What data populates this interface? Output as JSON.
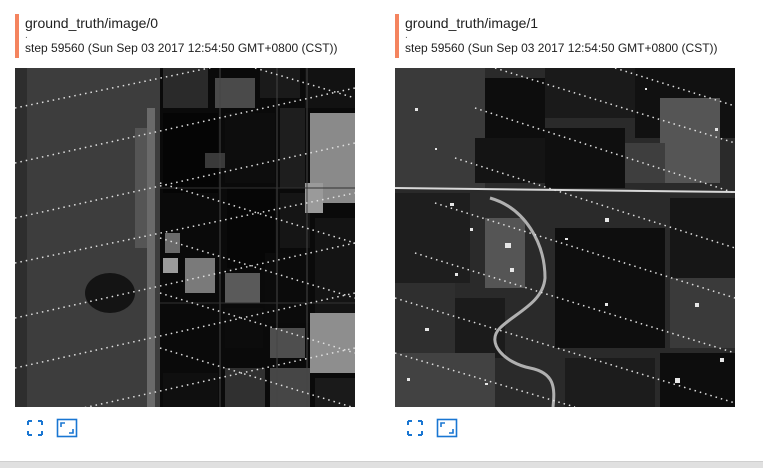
{
  "colors": {
    "accent": "#f4845f",
    "icon": "#1976d2",
    "title_text": "#212121"
  },
  "cards": [
    {
      "title": "ground_truth/image/0",
      "dot": ".",
      "subtitle": "step 59560 (Sun Sep 03 2017 12:54:50 GMT+0800 (CST))",
      "image_alt": "ground truth segmentation image 0",
      "actions": [
        {
          "icon": "fullscreen-icon",
          "label": "Toggle actual size"
        },
        {
          "icon": "fit-icon",
          "label": "Fit image"
        }
      ]
    },
    {
      "title": "ground_truth/image/1",
      "dot": ".",
      "subtitle": "step 59560 (Sun Sep 03 2017 12:54:50 GMT+0800 (CST))",
      "image_alt": "ground truth segmentation image 1",
      "actions": [
        {
          "icon": "fullscreen-icon",
          "label": "Toggle actual size"
        },
        {
          "icon": "fit-icon",
          "label": "Fit image"
        }
      ]
    }
  ]
}
